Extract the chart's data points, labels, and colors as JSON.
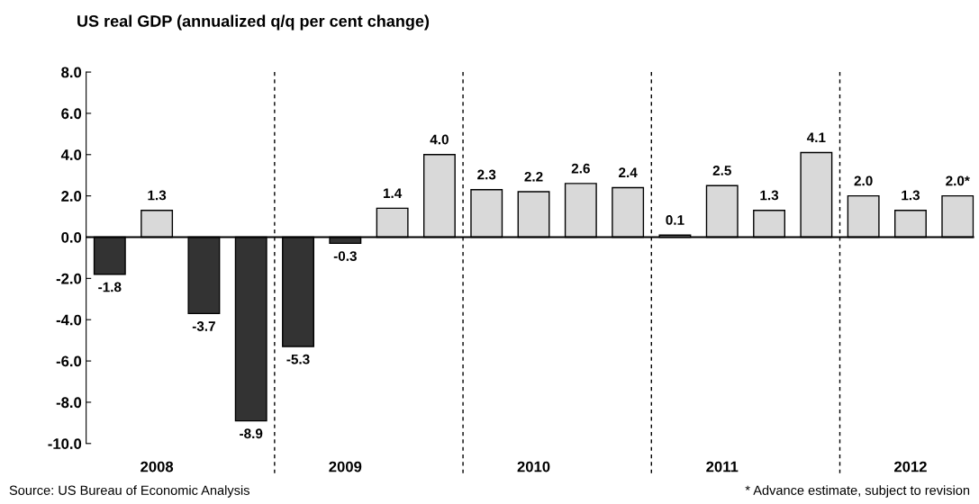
{
  "chart_data": {
    "type": "bar",
    "subtitle": "US real GDP (annualized q/q per cent change)",
    "categories": [
      null,
      "2008",
      null,
      null,
      null,
      "2009",
      null,
      null,
      null,
      "2010",
      null,
      null,
      null,
      "2011",
      null,
      null,
      null,
      "2012",
      null
    ],
    "values": [
      -1.8,
      1.3,
      -3.7,
      -8.9,
      -5.3,
      -0.3,
      1.4,
      4.0,
      2.3,
      2.2,
      2.6,
      2.4,
      0.1,
      2.5,
      1.3,
      4.1,
      2.0,
      1.3,
      2.0
    ],
    "colors": [
      "#333333",
      "#d9d9d9",
      "#333333",
      "#333333",
      "#333333",
      "#333333",
      "#d9d9d9",
      "#d9d9d9",
      "#d9d9d9",
      "#d9d9d9",
      "#d9d9d9",
      "#d9d9d9",
      "#d9d9d9",
      "#d9d9d9",
      "#d9d9d9",
      "#d9d9d9",
      "#d9d9d9",
      "#d9d9d9",
      "#d9d9d9"
    ],
    "value_labels": [
      "-1.8",
      "1.3",
      "-3.7",
      "-8.9",
      "-5.3",
      "-0.3",
      "1.4",
      "4.0",
      "2.3",
      "2.2",
      "2.6",
      "2.4",
      "0.1",
      "2.5",
      "1.3",
      "4.1",
      "2.0",
      "1.3",
      "2.0*"
    ],
    "ylim": [
      -10,
      8
    ],
    "yticks": [
      {
        "value": -10,
        "label": "-10.0"
      },
      {
        "value": -8,
        "label": "-8.0"
      },
      {
        "value": -6,
        "label": "-6.0"
      },
      {
        "value": -4,
        "label": "-4.0"
      },
      {
        "value": -2,
        "label": "-2.0"
      },
      {
        "value": 0,
        "label": "0.0"
      },
      {
        "value": 2,
        "label": "2.0"
      },
      {
        "value": 4,
        "label": "4.0"
      },
      {
        "value": 6,
        "label": "6.0"
      },
      {
        "value": 8,
        "label": "8.0"
      }
    ],
    "annotations": [
      "Source: US Bureau of Economic Analysis",
      "* Advance estimate, subject to revision"
    ],
    "grid": false,
    "legend": false
  }
}
